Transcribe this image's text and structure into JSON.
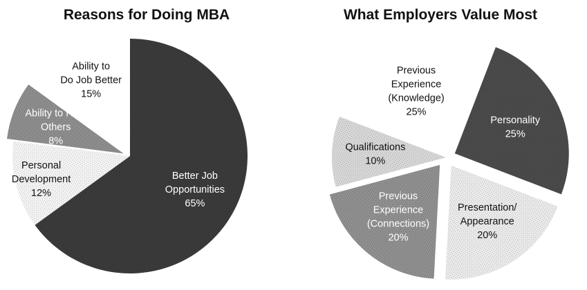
{
  "charts": [
    {
      "title": "Reasons for Doing MBA",
      "chart_data": {
        "type": "pie",
        "title": "Reasons for Doing MBA",
        "slices": [
          {
            "name": "Better Job Opportunities",
            "lines": [
              "Better Job",
              "Opportunities",
              "65%"
            ],
            "value": 65,
            "color": "#3a3a3a",
            "text_color": "#ffffff"
          },
          {
            "name": "Personal Development",
            "lines": [
              "Personal",
              "Development",
              "12%"
            ],
            "value": 12,
            "color": "#f2f2f2",
            "text_color": "#111111"
          },
          {
            "name": "Ability to Help Others",
            "lines": [
              "Ability to Help",
              "Others",
              "8%"
            ],
            "value": 8,
            "color": "#8d8d8d",
            "text_color": "#ffffff"
          },
          {
            "name": "Ability to Do Job Better",
            "lines": [
              "Ability to",
              "Do Job Better",
              "15%"
            ],
            "value": 15,
            "color": "#ffffff",
            "text_color": "#111111"
          }
        ],
        "start_angle_deg": -90,
        "exploded": [
          "Ability to Help Others"
        ]
      }
    },
    {
      "title": "What Employers Value Most",
      "chart_data": {
        "type": "pie",
        "title": "What Employers Value Most",
        "slices": [
          {
            "name": "Personality",
            "lines": [
              "Personality",
              "25%"
            ],
            "value": 25,
            "color": "#4a4a4a",
            "text_color": "#ffffff"
          },
          {
            "name": "Presentation/ Appearance",
            "lines": [
              "Presentation/",
              "Appearance",
              "20%"
            ],
            "value": 20,
            "color": "#e9e9e9",
            "text_color": "#111111"
          },
          {
            "name": "Previous Experience (Connections)",
            "lines": [
              "Previous",
              "Experience",
              "(Connections)",
              "20%"
            ],
            "value": 20,
            "color": "#8f8f8f",
            "text_color": "#ffffff"
          },
          {
            "name": "Qualifications",
            "lines": [
              "Qualifications",
              "10%"
            ],
            "value": 10,
            "color": "#d6d6d6",
            "text_color": "#111111"
          },
          {
            "name": "Previous Experience (Knowledge)",
            "lines": [
              "Previous",
              "Experience",
              "(Knowledge)",
              "25%"
            ],
            "value": 25,
            "color": "#ffffff",
            "text_color": "#111111"
          }
        ],
        "start_angle_deg": -69,
        "exploded": [
          "Personality",
          "Presentation/ Appearance",
          "Previous Experience (Connections)"
        ]
      }
    }
  ]
}
